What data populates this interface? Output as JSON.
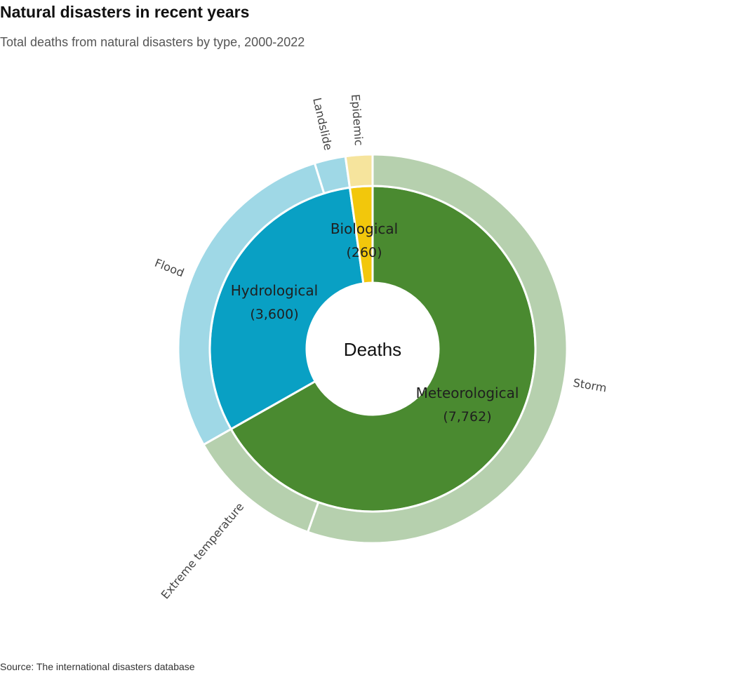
{
  "title": "Natural disasters in recent years",
  "subtitle": "Total deaths from natural disasters by type, 2000-2022",
  "source": "Source: The international disasters database",
  "chart_data": {
    "type": "sunburst",
    "title": "Natural disasters in recent years",
    "subtitle": "Total deaths from natural disasters by type, 2000-2022",
    "center_label": "Deaths",
    "inner_ring": [
      {
        "name": "Meteorological",
        "value": 7762,
        "value_label": "(7,762)",
        "color": "#4a8a30"
      },
      {
        "name": "Hydrological",
        "value": 3600,
        "value_label": "(3,600)",
        "color": "#09a0c4"
      },
      {
        "name": "Biological",
        "value": 260,
        "value_label": "(260)",
        "color": "#f2c70c"
      }
    ],
    "outer_ring": [
      {
        "name": "Storm",
        "parent": "Meteorological",
        "value": 6440,
        "color": "#b6d0ae"
      },
      {
        "name": "Extreme temperature",
        "parent": "Meteorological",
        "value": 1322,
        "color": "#b6d0ae"
      },
      {
        "name": "Flood",
        "parent": "Hydrological",
        "value": 3300,
        "color": "#9fd8e6"
      },
      {
        "name": "Landslide",
        "parent": "Hydrological",
        "value": 300,
        "color": "#9fd8e6"
      },
      {
        "name": "Epidemic",
        "parent": "Biological",
        "value": 260,
        "color": "#f6e49d"
      }
    ]
  }
}
